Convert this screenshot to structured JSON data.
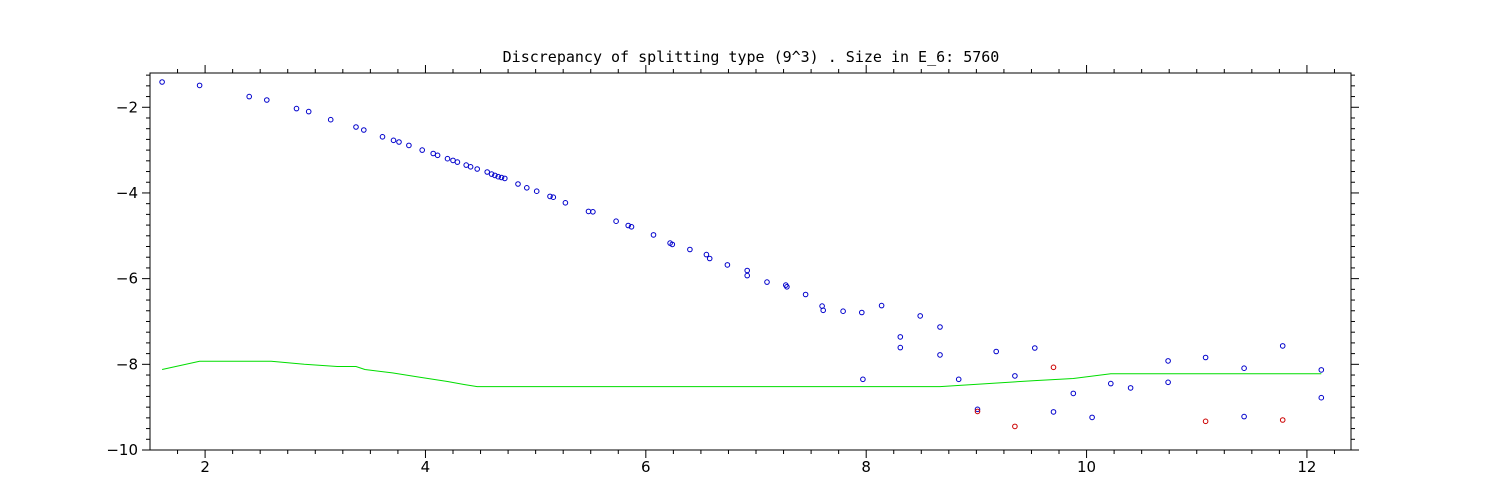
{
  "chart_data": {
    "type": "scatter",
    "title": "Discrepancy of splitting type (9^3) .  Size in E_6: 5760",
    "xlabel": "",
    "ylabel": "",
    "xlim": [
      1.5,
      12.4
    ],
    "ylim": [
      -10,
      -1.2
    ],
    "x_ticks": [
      2,
      4,
      6,
      8,
      10,
      12
    ],
    "y_ticks": [
      -2,
      -4,
      -6,
      -8,
      -10
    ],
    "x_tick_labels": [
      "2",
      "4",
      "6",
      "8",
      "10",
      "12"
    ],
    "y_tick_labels": [
      "−2",
      "−4",
      "−6",
      "−8",
      "−10"
    ],
    "grid": false,
    "colors": {
      "blue": "#0000cc",
      "red": "#cc0000",
      "green": "#00dd00"
    },
    "series": [
      {
        "color": "#0000cc",
        "marker": "circle",
        "points": [
          [
            1.61,
            -1.41
          ],
          [
            1.95,
            -1.49
          ],
          [
            2.4,
            -1.75
          ],
          [
            2.56,
            -1.83
          ],
          [
            2.83,
            -2.03
          ],
          [
            2.94,
            -2.1
          ],
          [
            3.14,
            -2.29
          ],
          [
            3.37,
            -2.46
          ],
          [
            3.44,
            -2.53
          ],
          [
            3.61,
            -2.69
          ],
          [
            3.71,
            -2.77
          ],
          [
            3.76,
            -2.81
          ],
          [
            3.85,
            -2.89
          ],
          [
            3.97,
            -3.0
          ],
          [
            4.07,
            -3.08
          ],
          [
            4.11,
            -3.12
          ],
          [
            4.2,
            -3.2
          ],
          [
            4.25,
            -3.24
          ],
          [
            4.29,
            -3.28
          ],
          [
            4.37,
            -3.35
          ],
          [
            4.41,
            -3.39
          ],
          [
            4.47,
            -3.44
          ],
          [
            4.56,
            -3.51
          ],
          [
            4.6,
            -3.56
          ],
          [
            4.63,
            -3.59
          ],
          [
            4.66,
            -3.62
          ],
          [
            4.69,
            -3.64
          ],
          [
            4.72,
            -3.66
          ],
          [
            4.84,
            -3.79
          ],
          [
            4.92,
            -3.88
          ],
          [
            5.01,
            -3.96
          ],
          [
            5.13,
            -4.08
          ],
          [
            5.16,
            -4.1
          ],
          [
            5.27,
            -4.23
          ],
          [
            5.48,
            -4.43
          ],
          [
            5.52,
            -4.44
          ],
          [
            5.73,
            -4.66
          ],
          [
            5.84,
            -4.76
          ],
          [
            5.87,
            -4.79
          ],
          [
            6.07,
            -4.98
          ],
          [
            6.22,
            -5.17
          ],
          [
            6.24,
            -5.2
          ],
          [
            6.4,
            -5.32
          ],
          [
            6.55,
            -5.44
          ],
          [
            6.58,
            -5.53
          ],
          [
            6.74,
            -5.68
          ],
          [
            6.92,
            -5.81
          ],
          [
            6.92,
            -5.93
          ],
          [
            7.1,
            -6.08
          ],
          [
            7.27,
            -6.15
          ],
          [
            7.28,
            -6.19
          ],
          [
            7.45,
            -6.37
          ],
          [
            7.6,
            -6.64
          ],
          [
            7.61,
            -6.74
          ],
          [
            7.79,
            -6.76
          ],
          [
            7.96,
            -6.79
          ],
          [
            8.14,
            -6.63
          ],
          [
            8.31,
            -7.36
          ],
          [
            8.31,
            -7.61
          ],
          [
            8.49,
            -6.87
          ],
          [
            8.67,
            -7.13
          ],
          [
            8.67,
            -7.78
          ],
          [
            8.84,
            -8.35
          ],
          [
            7.97,
            -8.35
          ],
          [
            9.01,
            -9.05
          ],
          [
            9.18,
            -7.7
          ],
          [
            9.35,
            -8.27
          ],
          [
            9.53,
            -7.62
          ],
          [
            9.7,
            -9.11
          ],
          [
            9.88,
            -8.68
          ],
          [
            10.05,
            -9.24
          ],
          [
            10.22,
            -8.45
          ],
          [
            10.4,
            -8.55
          ],
          [
            10.74,
            -7.92
          ],
          [
            10.74,
            -8.42
          ],
          [
            11.08,
            -7.84
          ],
          [
            11.43,
            -8.09
          ],
          [
            11.43,
            -9.22
          ],
          [
            11.78,
            -7.57
          ],
          [
            12.13,
            -8.13
          ],
          [
            12.13,
            -8.78
          ]
        ]
      },
      {
        "color": "#cc0000",
        "marker": "circle",
        "points": [
          [
            9.01,
            -9.1
          ],
          [
            9.35,
            -9.45
          ],
          [
            9.7,
            -8.07
          ],
          [
            11.08,
            -9.33
          ],
          [
            11.78,
            -9.3
          ]
        ]
      },
      {
        "color": "#00dd00",
        "marker": "line",
        "points": [
          [
            1.61,
            -8.12
          ],
          [
            1.95,
            -7.93
          ],
          [
            2.6,
            -7.93
          ],
          [
            2.9,
            -8.0
          ],
          [
            3.2,
            -8.05
          ],
          [
            3.37,
            -8.05
          ],
          [
            3.45,
            -8.12
          ],
          [
            3.7,
            -8.2
          ],
          [
            3.95,
            -8.3
          ],
          [
            4.2,
            -8.4
          ],
          [
            4.35,
            -8.47
          ],
          [
            4.47,
            -8.52
          ],
          [
            8.67,
            -8.52
          ],
          [
            9.1,
            -8.45
          ],
          [
            9.53,
            -8.38
          ],
          [
            9.88,
            -8.33
          ],
          [
            10.22,
            -8.22
          ],
          [
            12.13,
            -8.22
          ]
        ]
      }
    ]
  }
}
